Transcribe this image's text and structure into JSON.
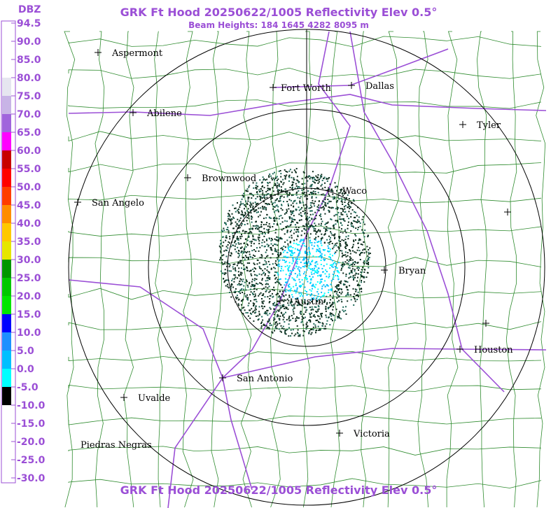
{
  "header": {
    "title": "GRK Ft Hood 20250622/1005 Reflectivity Elev 0.5°",
    "subtitle": "Beam Heights: 184 1645 4282 8095 m",
    "footer": "GRK Ft Hood 20250622/1005 Reflectivity Elev 0.5°"
  },
  "legend": {
    "unit": "DBZ",
    "labels": [
      "94.5",
      "90.0",
      "85.0",
      "80.0",
      "75.0",
      "70.0",
      "65.0",
      "60.0",
      "55.0",
      "50.0",
      "45.0",
      "40.0",
      "35.0",
      "30.0",
      "25.0",
      "20.0",
      "15.0",
      "10.0",
      "5.0",
      "0.0",
      "-5.0",
      "-10.0",
      "-15.0",
      "-20.0",
      "-25.0",
      "-30.0"
    ],
    "colors": [
      "#ffffff",
      "#ffffff",
      "#ffffff",
      "#e6e6f0",
      "#c8b4e6",
      "#a064dc",
      "#ff00ff",
      "#c80000",
      "#ff0000",
      "#ff3c00",
      "#ff8c00",
      "#ffc800",
      "#e6e600",
      "#009600",
      "#00c800",
      "#00e600",
      "#0000ff",
      "#1e90ff",
      "#00bfff",
      "#00ffff",
      "#000000",
      "#ffffff",
      "#ffffff",
      "#ffffff",
      "#ffffff"
    ]
  },
  "cities": [
    "Aspermont",
    "Fort Worth",
    "Dallas",
    "Abilene",
    "Tyler",
    "Brownwood",
    "Waco",
    "San Angelo",
    "Bryan",
    "Austin",
    "Houston",
    "San Antonio",
    "Uvalde",
    "Victoria",
    "Piedras Negras"
  ]
}
